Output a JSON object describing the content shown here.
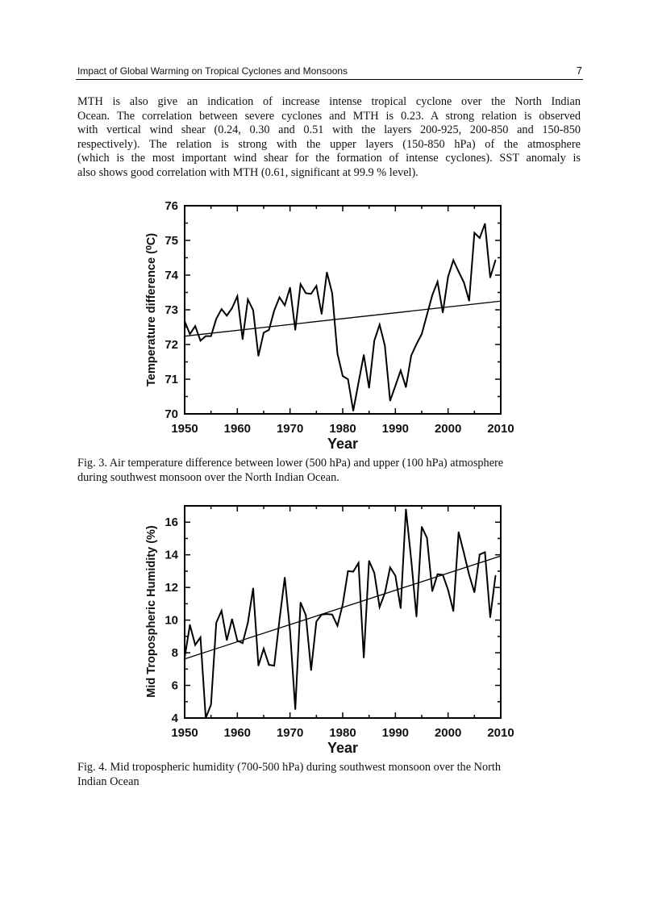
{
  "header": {
    "running_title": "Impact of Global Warming on Tropical Cyclones and Monsoons",
    "page_number": "7"
  },
  "paragraph": {
    "lines": [
      "MTH is also give an indication of increase intense tropical cyclone over the North Indian",
      "Ocean. The correlation between severe cyclones and MTH is 0.23. A strong relation is observed",
      "with vertical wind shear (0.24, 0.30 and 0.51 with the layers 200-925, 200-850 and 150-850",
      "respectively). The relation is strong with the upper layers (150-850 hPa) of the atmosphere",
      "(which is the most important wind shear for the formation of intense cyclones). SST anomaly is",
      "also shows good correlation with MTH (0.61, significant at 99.9 % level)."
    ]
  },
  "figures": [
    {
      "caption_lines": [
        "Fig. 3. Air temperature difference between lower (500 hPa) and upper (100 hPa) atmosphere",
        "during southwest monsoon over the North Indian Ocean."
      ]
    },
    {
      "caption_lines": [
        "Fig. 4. Mid tropospheric humidity (700-500 hPa) during southwest monsoon over the North",
        "Indian Ocean"
      ]
    }
  ],
  "chart_data": [
    {
      "type": "line",
      "xlabel": "Year",
      "ylabel": "Temperature difference (⁰C)",
      "xlim": [
        1950,
        2010
      ],
      "ylim": [
        70,
        76
      ],
      "xticks": [
        1950,
        1960,
        1970,
        1980,
        1990,
        2000,
        2010
      ],
      "yticks": [
        70,
        71,
        72,
        73,
        74,
        75,
        76
      ],
      "grid": false,
      "x_start": 1950,
      "series": [
        {
          "values": [
            72.67,
            72.3,
            72.53,
            72.11,
            72.24,
            72.24,
            72.74,
            73.02,
            72.83,
            73.05,
            73.39,
            72.15,
            73.3,
            72.99,
            71.67,
            72.34,
            72.42,
            72.98,
            73.36,
            73.13,
            73.64,
            72.42,
            73.74,
            73.48,
            73.46,
            73.69,
            72.88,
            74.08,
            73.48,
            71.74,
            71.09,
            71.0,
            70.09,
            70.9,
            71.7,
            70.75,
            72.11,
            72.57,
            71.97,
            70.38,
            70.81,
            71.25,
            70.77,
            71.68,
            72.01,
            72.3,
            72.86,
            73.42,
            73.81,
            72.92,
            73.95,
            74.43,
            74.1,
            73.79,
            73.26,
            75.22,
            75.07,
            75.48,
            73.93,
            74.43
          ]
        }
      ],
      "trend_line": {
        "x": [
          1950,
          2010
        ],
        "y": [
          72.24,
          73.25
        ]
      }
    },
    {
      "type": "line",
      "xlabel": "Year",
      "ylabel": "Mid Tropospheric Humidity (%)",
      "xlim": [
        1950,
        2010
      ],
      "ylim": [
        4,
        17
      ],
      "xticks": [
        1950,
        1960,
        1970,
        1980,
        1990,
        2000,
        2010
      ],
      "yticks": [
        4,
        6,
        8,
        10,
        12,
        14,
        16
      ],
      "grid": false,
      "x_start": 1950,
      "series": [
        {
          "values": [
            7.7,
            9.71,
            8.48,
            8.94,
            4.0,
            4.82,
            9.84,
            10.57,
            8.77,
            10.06,
            8.74,
            8.59,
            9.84,
            11.95,
            7.21,
            8.25,
            7.26,
            7.21,
            10.01,
            12.61,
            9.35,
            4.54,
            11.08,
            10.3,
            6.93,
            9.91,
            10.34,
            10.37,
            10.34,
            9.65,
            10.96,
            13.0,
            12.97,
            13.5,
            7.7,
            13.63,
            12.89,
            10.8,
            11.65,
            13.22,
            12.72,
            10.73,
            16.79,
            13.71,
            10.21,
            15.72,
            15.03,
            11.77,
            12.81,
            12.77,
            11.85,
            10.55,
            15.39,
            14.12,
            12.77,
            11.7,
            14.02,
            14.16,
            10.17,
            12.72
          ]
        }
      ],
      "trend_line": {
        "x": [
          1950,
          2010
        ],
        "y": [
          7.62,
          13.93
        ]
      }
    }
  ]
}
